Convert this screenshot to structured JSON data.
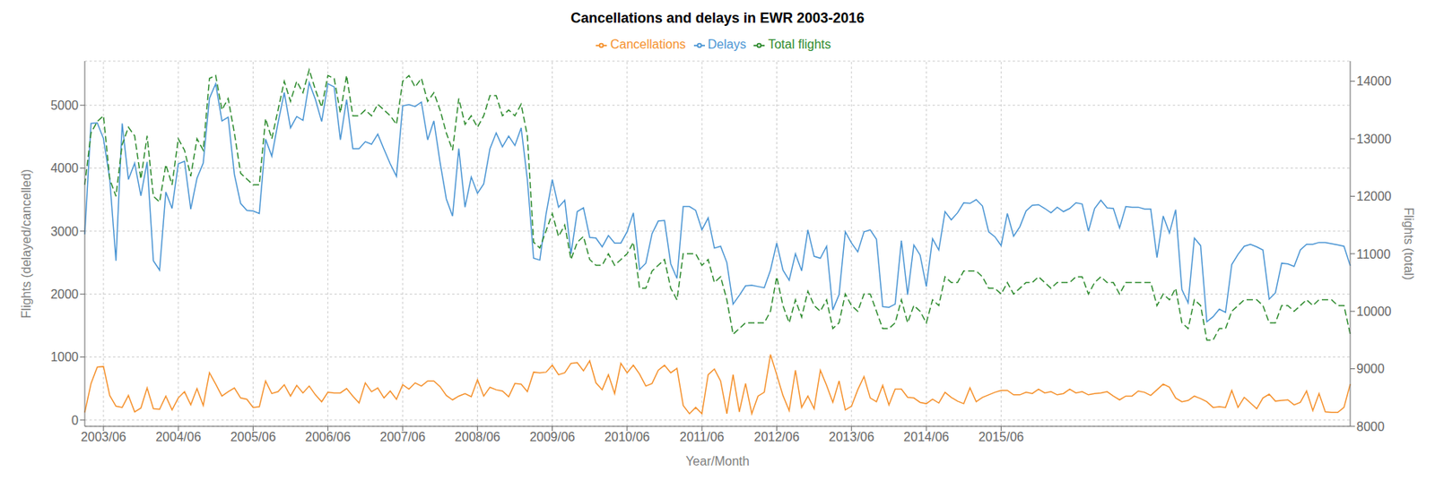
{
  "chart_data": {
    "type": "line",
    "title": "Cancellations and delays in EWR 2003-2016",
    "xlabel": "Year/Month",
    "ylabel": "Flights (delayed/cancelled)",
    "y2label": "Flights (total)",
    "categories": [
      null,
      null,
      null,
      "2003/06",
      null,
      null,
      null,
      null,
      null,
      null,
      null,
      null,
      null,
      null,
      null,
      "2004/06",
      null,
      null,
      null,
      null,
      null,
      null,
      null,
      null,
      null,
      null,
      null,
      "2005/06",
      null,
      null,
      null,
      null,
      null,
      null,
      null,
      null,
      null,
      null,
      null,
      "2006/06",
      null,
      null,
      null,
      null,
      null,
      null,
      null,
      null,
      null,
      null,
      null,
      "2007/06",
      null,
      null,
      null,
      null,
      null,
      null,
      null,
      null,
      null,
      null,
      null,
      "2008/06",
      null,
      null,
      null,
      null,
      null,
      null,
      null,
      null,
      null,
      null,
      null,
      "2009/06",
      null,
      null,
      null,
      null,
      null,
      null,
      null,
      null,
      null,
      null,
      null,
      "2010/06",
      null,
      null,
      null,
      null,
      null,
      null,
      null,
      null,
      null,
      null,
      null,
      "2011/06",
      null,
      null,
      null,
      null,
      null,
      null,
      null,
      null,
      null,
      null,
      null,
      "2012/06",
      null,
      null,
      null,
      null,
      null,
      null,
      null,
      null,
      null,
      null,
      null,
      "2013/06",
      null,
      null,
      null,
      null,
      null,
      null,
      null,
      null,
      null,
      null,
      null,
      "2014/06",
      null,
      null,
      null,
      null,
      null,
      null,
      null,
      null,
      null,
      null,
      null,
      "2015/06",
      null,
      null,
      null,
      null,
      null,
      null,
      null,
      null,
      null,
      null,
      null,
      null,
      null,
      null,
      null,
      null,
      null,
      null,
      null,
      null,
      null,
      null,
      null,
      null,
      null,
      null,
      null,
      null,
      null,
      null,
      null,
      null,
      null,
      null,
      null,
      null,
      null,
      null,
      null,
      null,
      null,
      null,
      null,
      null,
      null,
      null,
      null,
      null,
      null,
      null,
      null,
      null,
      null,
      null,
      null,
      null
    ],
    "ylim": [
      -100,
      5700
    ],
    "yticks": [
      0,
      1000,
      2000,
      3000,
      4000,
      5000
    ],
    "y2lim": [
      8000,
      14350
    ],
    "y2ticks": [
      8000,
      9000,
      10000,
      11000,
      12000,
      13000,
      14000
    ],
    "grid": true,
    "legend": "top",
    "series": [
      {
        "name": "Delays",
        "color": "#4c96d4",
        "line_style": "solid",
        "values": [
          2950,
          4710,
          4720,
          4470,
          3830,
          2530,
          4710,
          3820,
          4080,
          3560,
          4100,
          2530,
          2380,
          3620,
          3360,
          4070,
          4110,
          3350,
          3840,
          4080,
          5110,
          5340,
          4750,
          4810,
          3900,
          3440,
          3330,
          3320,
          3280,
          4460,
          4190,
          4720,
          5200,
          4640,
          4820,
          4760,
          5360,
          5090,
          4740,
          5340,
          5290,
          4450,
          5090,
          4310,
          4310,
          4420,
          4380,
          4540,
          4300,
          4070,
          3870,
          4990,
          5010,
          4980,
          5050,
          4450,
          4750,
          4090,
          3510,
          3240,
          4310,
          3380,
          3860,
          3600,
          3750,
          4310,
          4560,
          4340,
          4510,
          4360,
          4640,
          3820,
          2570,
          2540,
          3270,
          3820,
          3380,
          3490,
          2640,
          3310,
          3370,
          2900,
          2890,
          2750,
          2930,
          2810,
          2810,
          2990,
          3290,
          2390,
          2490,
          2960,
          3160,
          3170,
          2480,
          2250,
          3390,
          3390,
          3330,
          3020,
          3210,
          2730,
          2760,
          2500,
          1840,
          1980,
          2130,
          2140,
          2120,
          2100,
          2380,
          2810,
          2380,
          2220,
          2640,
          2370,
          3020,
          2600,
          2570,
          2760,
          1750,
          1990,
          2990,
          2810,
          2670,
          2990,
          3020,
          2870,
          1800,
          1790,
          1840,
          2850,
          1990,
          2780,
          2620,
          2120,
          2880,
          2700,
          3310,
          3180,
          3290,
          3450,
          3440,
          3500,
          3400,
          2990,
          2910,
          2770,
          3280,
          2920,
          3070,
          3320,
          3410,
          3420,
          3360,
          3290,
          3380,
          3310,
          3360,
          3450,
          3430,
          3000,
          3360,
          3490,
          3370,
          3360,
          3050,
          3390,
          3380,
          3380,
          3350,
          3350,
          2580,
          3240,
          2970,
          3340,
          2070,
          1860,
          2890,
          2770,
          1560,
          1640,
          1760,
          1710,
          2470,
          2630,
          2760,
          2790,
          2750,
          2700,
          1920,
          2020,
          2490,
          2480,
          2440,
          2700,
          2790,
          2790,
          2820,
          2820,
          2800,
          2780,
          2760,
          2450
        ]
      },
      {
        "name": "Cancellations",
        "color": "#f5922e",
        "line_style": "solid",
        "values": [
          120,
          580,
          840,
          850,
          390,
          220,
          200,
          390,
          130,
          190,
          510,
          180,
          170,
          380,
          160,
          350,
          450,
          240,
          500,
          230,
          750,
          570,
          380,
          450,
          510,
          350,
          330,
          200,
          210,
          620,
          420,
          450,
          560,
          380,
          550,
          430,
          540,
          400,
          290,
          440,
          430,
          430,
          500,
          380,
          270,
          590,
          450,
          510,
          350,
          460,
          330,
          560,
          490,
          590,
          540,
          620,
          620,
          530,
          390,
          320,
          380,
          420,
          370,
          640,
          380,
          520,
          480,
          460,
          370,
          580,
          570,
          450,
          760,
          750,
          760,
          870,
          720,
          750,
          900,
          910,
          780,
          940,
          590,
          480,
          720,
          420,
          900,
          750,
          870,
          730,
          540,
          580,
          790,
          870,
          750,
          820,
          230,
          100,
          200,
          100,
          720,
          810,
          620,
          100,
          720,
          130,
          580,
          100,
          380,
          440,
          1040,
          720,
          390,
          150,
          790,
          200,
          380,
          180,
          790,
          550,
          280,
          620,
          160,
          220,
          480,
          690,
          350,
          290,
          550,
          240,
          490,
          490,
          360,
          350,
          280,
          260,
          330,
          270,
          440,
          360,
          300,
          260,
          510,
          290,
          360,
          400,
          440,
          470,
          470,
          400,
          400,
          440,
          420,
          490,
          430,
          450,
          400,
          420,
          490,
          430,
          450,
          400,
          420,
          430,
          450,
          380,
          320,
          380,
          380,
          460,
          440,
          390,
          480,
          570,
          520,
          350,
          290,
          310,
          380,
          340,
          290,
          200,
          210,
          200,
          470,
          200,
          360,
          270,
          180,
          350,
          410,
          300,
          310,
          320,
          240,
          280,
          460,
          150,
          420,
          130,
          120,
          120,
          200,
          570
        ]
      },
      {
        "name": "Total flights",
        "color": "#2e8b2e",
        "line_style": "dashed",
        "axis": "y2",
        "values": [
          12200,
          13100,
          13300,
          13400,
          12300,
          12000,
          12900,
          13200,
          13050,
          12300,
          13050,
          12000,
          11900,
          12550,
          12200,
          13000,
          12800,
          12350,
          13000,
          12800,
          14050,
          14100,
          13500,
          13700,
          13100,
          12400,
          12300,
          12200,
          12200,
          13350,
          13000,
          13500,
          14000,
          13650,
          14000,
          13800,
          14200,
          13850,
          13550,
          14100,
          14050,
          13450,
          14100,
          13400,
          13400,
          13500,
          13400,
          13600,
          13500,
          13400,
          13250,
          14000,
          14100,
          13900,
          14050,
          13650,
          13800,
          13500,
          13100,
          12800,
          13700,
          13250,
          13400,
          13200,
          13400,
          13750,
          13750,
          13400,
          13500,
          13400,
          13600,
          13050,
          11200,
          11100,
          11400,
          11700,
          11300,
          11500,
          10900,
          11200,
          11300,
          10900,
          10800,
          10800,
          11000,
          10800,
          10900,
          11000,
          11200,
          10400,
          10400,
          10700,
          10800,
          10900,
          10400,
          10200,
          11000,
          11000,
          11000,
          10800,
          10900,
          10500,
          10600,
          10200,
          9600,
          9700,
          9800,
          9800,
          9800,
          9800,
          10000,
          10600,
          10100,
          9800,
          10200,
          9900,
          10350,
          10100,
          10000,
          10200,
          9700,
          9800,
          10300,
          10100,
          10000,
          10300,
          10300,
          10000,
          9700,
          9700,
          9800,
          10200,
          9800,
          10100,
          10000,
          9800,
          10200,
          10100,
          10600,
          10500,
          10500,
          10700,
          10700,
          10700,
          10600,
          10400,
          10400,
          10300,
          10500,
          10300,
          10400,
          10500,
          10500,
          10600,
          10500,
          10400,
          10500,
          10500,
          10500,
          10600,
          10600,
          10300,
          10500,
          10600,
          10500,
          10500,
          10300,
          10500,
          10500,
          10500,
          10500,
          10500,
          10100,
          10300,
          10200,
          10400,
          9800,
          9700,
          10200,
          10100,
          9500,
          9500,
          9700,
          9700,
          10000,
          10100,
          10200,
          10200,
          10200,
          10100,
          9800,
          9800,
          10100,
          10100,
          10000,
          10100,
          10200,
          10100,
          10200,
          10200,
          10200,
          10100,
          10100,
          9600
        ]
      }
    ]
  }
}
